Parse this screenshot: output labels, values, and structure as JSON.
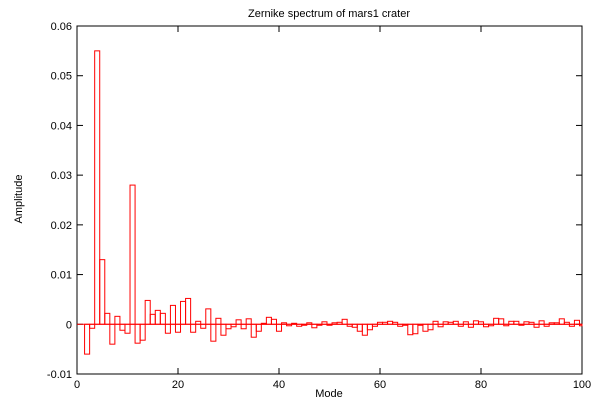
{
  "chart_data": {
    "type": "bar",
    "style": "histogram-steps",
    "title": "Zernike spectrum of mars1 crater",
    "xlabel": "Mode",
    "ylabel": "Amplitude",
    "xlim": [
      0,
      100
    ],
    "ylim": [
      -0.01,
      0.06
    ],
    "xticks": [
      0,
      20,
      40,
      60,
      80,
      100
    ],
    "xtick_labels": [
      "0",
      "20",
      "40",
      "60",
      "80",
      "100"
    ],
    "yticks": [
      -0.01,
      0,
      0.01,
      0.02,
      0.03,
      0.04,
      0.05,
      0.06
    ],
    "ytick_labels": [
      "-0.01",
      "0",
      "0.01",
      "0.02",
      "0.03",
      "0.04",
      "0.05",
      "0.06"
    ],
    "zero_line": true,
    "grid": false,
    "series": [
      {
        "color": "#ff0000",
        "x": [
          2,
          3,
          4,
          5,
          6,
          7,
          8,
          9,
          10,
          11,
          12,
          13,
          14,
          15,
          16,
          17,
          18,
          19,
          20,
          21,
          22,
          23,
          24,
          25,
          26,
          27,
          28,
          29,
          30,
          31,
          32,
          33,
          34,
          35,
          36,
          37,
          38,
          39,
          40,
          41,
          42,
          43,
          44,
          45,
          46,
          47,
          48,
          49,
          50,
          51,
          52,
          53,
          54,
          55,
          56,
          57,
          58,
          59,
          60,
          61,
          62,
          63,
          64,
          65,
          66,
          67,
          68,
          69,
          70,
          71,
          72,
          73,
          74,
          75,
          76,
          77,
          78,
          79,
          80,
          81,
          82,
          83,
          84,
          85,
          86,
          87,
          88,
          89,
          90,
          91,
          92,
          93,
          94,
          95,
          96,
          97,
          98,
          99,
          100
        ],
        "values": [
          -0.006,
          -0.0008,
          0.055,
          0.013,
          0.0022,
          -0.004,
          0.0016,
          -0.0012,
          -0.0018,
          0.028,
          -0.0038,
          -0.0032,
          0.0048,
          0.002,
          0.0028,
          0.0022,
          -0.0018,
          0.0038,
          -0.0016,
          0.0046,
          0.0052,
          -0.0016,
          0.0006,
          -0.0008,
          0.0031,
          -0.0034,
          0.0012,
          -0.0022,
          -0.0009,
          -0.0005,
          0.0009,
          -0.0009,
          0.0011,
          -0.0026,
          -0.0014,
          0.0002,
          0.0014,
          0.001,
          -0.0014,
          0.0003,
          -0.0003,
          0.0002,
          -0.0004,
          -0.0002,
          0.0003,
          -0.0007,
          -0.0002,
          0.0005,
          -0.0002,
          0.0003,
          0.0004,
          0.001,
          -0.0004,
          -0.0006,
          -0.0014,
          -0.0022,
          -0.0011,
          -0.0004,
          0.0004,
          0.0004,
          0.0006,
          0.0004,
          -0.0004,
          -0.0002,
          -0.0021,
          -0.0019,
          -0.0002,
          -0.0014,
          -0.0011,
          0.0006,
          -0.0005,
          0.0005,
          0.0004,
          0.0006,
          -0.0004,
          0.0005,
          -0.0006,
          0.0007,
          0.0005,
          -0.0005,
          -0.0003,
          0.0012,
          0.0011,
          -0.0003,
          0.0006,
          0.0006,
          -0.0002,
          0.0005,
          0.0004,
          -0.0006,
          0.0007,
          -0.0004,
          0.0003,
          0.0003,
          0.0011,
          0.0004,
          -0.0004,
          0.0008,
          -0.0003
        ]
      }
    ]
  }
}
